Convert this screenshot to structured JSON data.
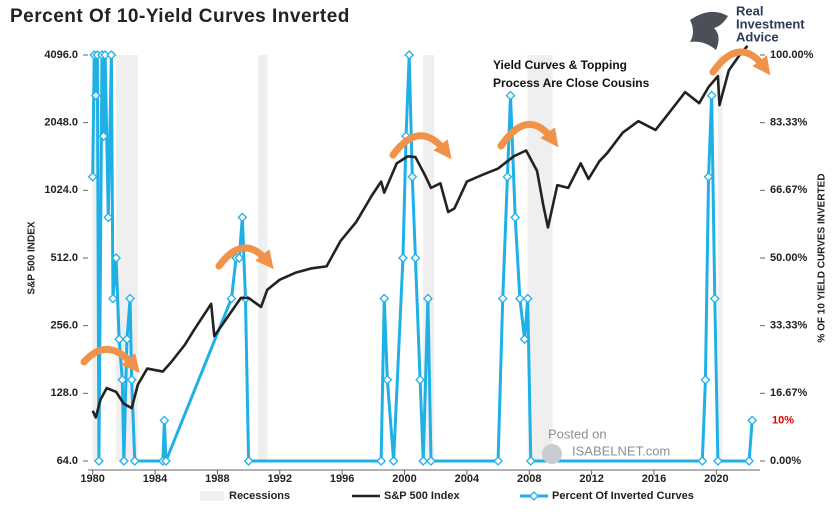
{
  "chart_data": {
    "type": "line",
    "title": "Percent Of 10-Yield Curves Inverted",
    "annotation": [
      "Yield Curves & Topping",
      "Process Are Close Cousins"
    ],
    "logo": [
      "Real",
      "Investment",
      "Advice"
    ],
    "watermark": [
      "Posted on",
      "ISABELNET.com"
    ],
    "y_label": "S&P 500 INDEX",
    "y2_label": "% OF 10 YIELD CURVES INVERTED",
    "xlim": [
      1979.7,
      2022.8
    ],
    "xticks": [
      1980,
      1984,
      1988,
      1992,
      1996,
      2000,
      2004,
      2008,
      2012,
      2016,
      2020
    ],
    "ylim": [
      64,
      4096
    ],
    "y_log_base": 2,
    "yticks": [
      {
        "value": 64,
        "label": "64.0"
      },
      {
        "value": 128,
        "label": "128.0"
      },
      {
        "value": 256,
        "label": "256.0"
      },
      {
        "value": 512,
        "label": "512.0"
      },
      {
        "value": 1024,
        "label": "1024.0"
      },
      {
        "value": 2048,
        "label": "2048.0"
      },
      {
        "value": 4096,
        "label": "4096.0"
      }
    ],
    "y2lim": [
      0,
      100
    ],
    "y2ticks": [
      {
        "value": 0,
        "label": "0.00%"
      },
      {
        "value": 16.67,
        "label": "16.67%"
      },
      {
        "value": 33.33,
        "label": "33.33%"
      },
      {
        "value": 50,
        "label": "50.00%"
      },
      {
        "value": 66.67,
        "label": "66.67%"
      },
      {
        "value": 83.33,
        "label": "83.33%"
      },
      {
        "value": 100,
        "label": "100.00%"
      }
    ],
    "y2_marker": {
      "value": 10,
      "label": "10%",
      "color": "#e00000"
    },
    "recessions": {
      "name": "Recessions",
      "color": "#efefef",
      "ranges": [
        [
          1980.0,
          1980.5
        ],
        [
          1981.5,
          1982.9
        ],
        [
          1990.6,
          1991.2
        ],
        [
          2001.2,
          2001.9
        ],
        [
          2007.9,
          2009.5
        ],
        [
          2020.1,
          2020.4
        ]
      ]
    },
    "series": [
      {
        "name": "S&P 500 Index",
        "color": "#222222",
        "axis": "y",
        "x": [
          1980.0,
          1980.2,
          1980.5,
          1980.9,
          1981.5,
          1982.0,
          1982.5,
          1982.9,
          1983.5,
          1984.5,
          1985.0,
          1985.9,
          1986.5,
          1987.6,
          1987.8,
          1988.5,
          1989.5,
          1990.0,
          1990.8,
          1991.2,
          1992.0,
          1993.0,
          1994.0,
          1995.0,
          1995.9,
          1996.9,
          1997.9,
          1998.5,
          1998.7,
          1999.5,
          2000.2,
          2000.7,
          2001.3,
          2001.7,
          2002.3,
          2002.8,
          2003.2,
          2004.0,
          2005.0,
          2006.0,
          2007.0,
          2007.8,
          2008.5,
          2008.9,
          2009.2,
          2009.8,
          2010.5,
          2011.3,
          2011.8,
          2012.5,
          2013.0,
          2014.0,
          2015.0,
          2016.1,
          2017.0,
          2018.0,
          2018.9,
          2019.5,
          2020.1,
          2020.2,
          2020.8,
          2021.5,
          2022.0
        ],
        "values": [
          107,
          100,
          120,
          135,
          130,
          115,
          110,
          140,
          165,
          160,
          175,
          210,
          245,
          320,
          230,
          270,
          340,
          340,
          310,
          370,
          410,
          440,
          460,
          470,
          610,
          740,
          970,
          1120,
          1000,
          1350,
          1450,
          1440,
          1200,
          1050,
          1100,
          820,
          850,
          1120,
          1200,
          1280,
          1450,
          1540,
          1250,
          880,
          700,
          1080,
          1050,
          1350,
          1150,
          1380,
          1500,
          1850,
          2080,
          1900,
          2280,
          2800,
          2500,
          2950,
          3300,
          2450,
          3500,
          4100,
          4500
        ]
      },
      {
        "name": "Percent Of Inverted Curves",
        "color": "#1fb0e6",
        "axis": "y2",
        "x": [
          1980.0,
          1980.1,
          1980.2,
          1980.3,
          1980.4,
          1980.6,
          1980.7,
          1980.8,
          1981.0,
          1981.2,
          1981.3,
          1981.5,
          1981.7,
          1981.9,
          1982.0,
          1982.2,
          1982.4,
          1982.5,
          1982.7,
          1984.5,
          1984.6,
          1984.7,
          1988.9,
          1989.2,
          1989.4,
          1989.6,
          1989.8,
          1990.0,
          1998.5,
          1998.7,
          1998.9,
          1999.3,
          1999.9,
          2000.1,
          2000.3,
          2000.5,
          2000.7,
          2001.0,
          2001.2,
          2001.5,
          2001.7,
          2006.0,
          2006.3,
          2006.6,
          2006.8,
          2007.1,
          2007.4,
          2007.7,
          2007.9,
          2008.1,
          2019.1,
          2019.3,
          2019.5,
          2019.7,
          2019.9,
          2020.1,
          2022.1,
          2022.3
        ],
        "values": [
          70,
          100,
          90,
          100,
          0,
          100,
          80,
          100,
          60,
          100,
          40,
          50,
          30,
          20,
          0,
          30,
          40,
          20,
          0,
          0,
          10,
          0,
          40,
          50,
          50,
          60,
          40,
          0,
          0,
          40,
          20,
          0,
          50,
          80,
          100,
          70,
          50,
          20,
          0,
          40,
          0,
          0,
          40,
          70,
          90,
          60,
          40,
          30,
          40,
          0,
          0,
          20,
          70,
          90,
          40,
          0,
          0,
          10
        ]
      }
    ]
  }
}
